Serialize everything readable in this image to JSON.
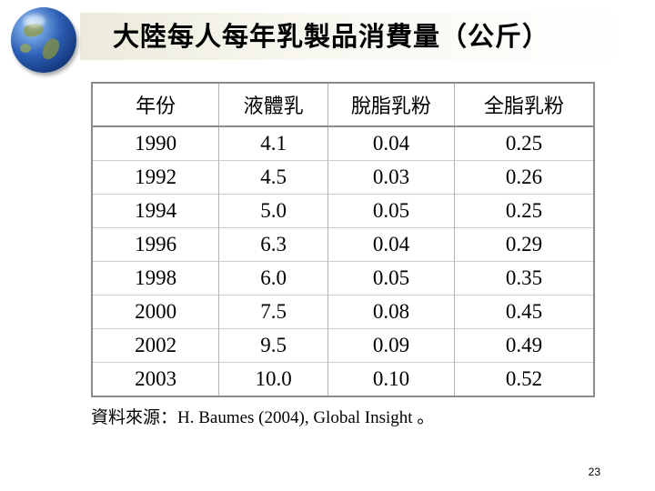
{
  "title": "大陸每人每年乳製品消費量（公斤）",
  "table": {
    "headers": [
      "年份",
      "液體乳",
      "脫脂乳粉",
      "全脂乳粉"
    ],
    "rows": [
      [
        "1990",
        "4.1",
        "0.04",
        "0.25"
      ],
      [
        "1992",
        "4.5",
        "0.03",
        "0.26"
      ],
      [
        "1994",
        "5.0",
        "0.05",
        "0.25"
      ],
      [
        "1996",
        "6.3",
        "0.04",
        "0.29"
      ],
      [
        "1998",
        "6.0",
        "0.05",
        "0.35"
      ],
      [
        "2000",
        "7.5",
        "0.08",
        "0.45"
      ],
      [
        "2002",
        "9.5",
        "0.09",
        "0.49"
      ],
      [
        "2003",
        "10.0",
        "0.10",
        "0.52"
      ]
    ]
  },
  "source": "資料來源：H. Baumes (2004), Global Insight 。",
  "page_number": "23",
  "icons": {
    "logo": "globe-icon"
  },
  "colors": {
    "title_bar": "#eceadb",
    "table_border": "#8c8c8c"
  }
}
